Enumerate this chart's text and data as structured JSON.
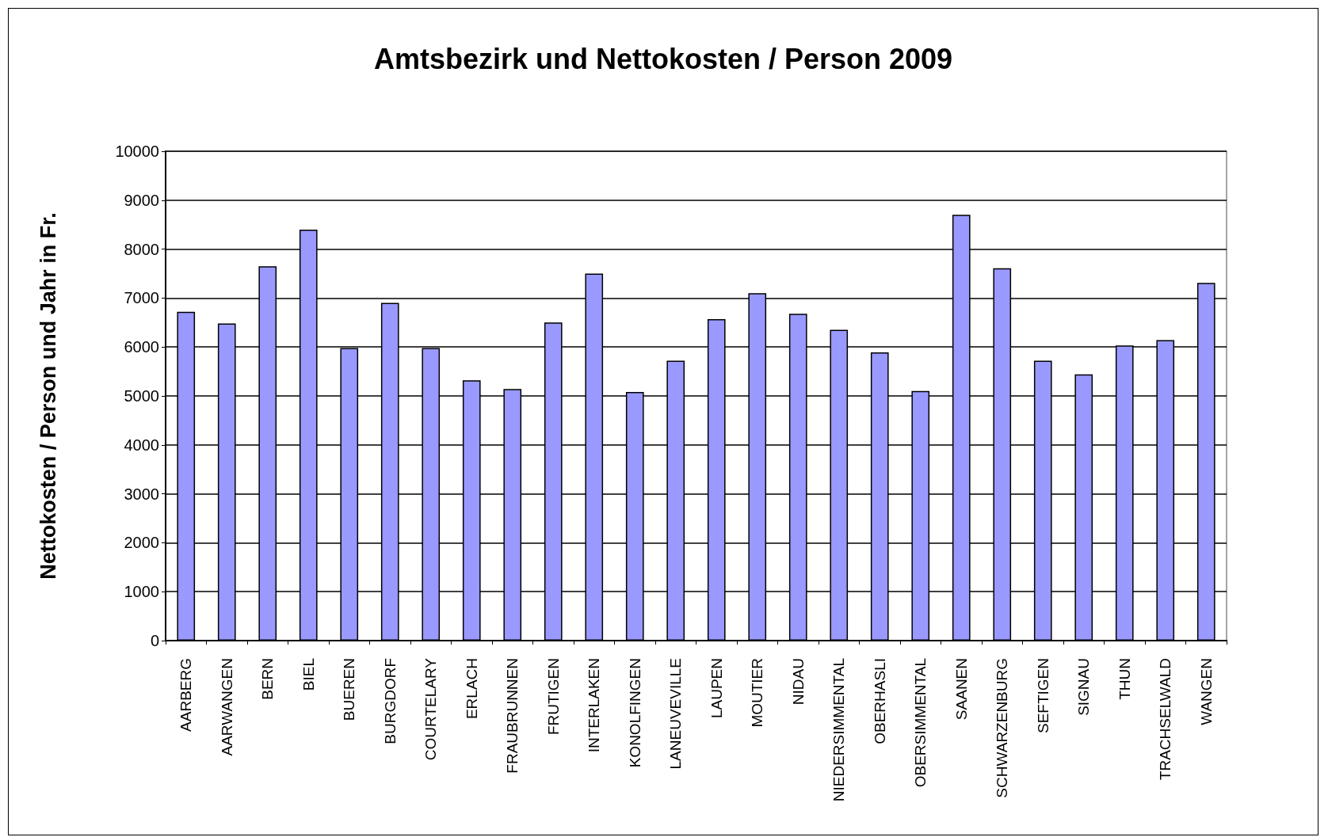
{
  "chart_data": {
    "type": "bar",
    "title": "Amtsbezirk und Nettokosten / Person 2009",
    "ylabel": "Nettokosten / Person und Jahr in Fr.",
    "categories": [
      "AARBERG",
      "AARWANGEN",
      "BERN",
      "BIEL",
      "BUEREN",
      "BURGDORF",
      "COURTELARY",
      "ERLACH",
      "FRAUBRUNNEN",
      "FRUTIGEN",
      "INTERLAKEN",
      "KONOLFINGEN",
      "LANEUVEVILLE",
      "LAUPEN",
      "MOUTIER",
      "NIDAU",
      "NIEDERSIMMENTAL",
      "OBERHASLI",
      "OBERSIMMENTAL",
      "SAANEN",
      "SCHWARZENBURG",
      "SEFTIGEN",
      "SIGNAU",
      "THUN",
      "TRACHSELWALD",
      "WANGEN"
    ],
    "values": [
      6720,
      6480,
      7650,
      8400,
      5980,
      6900,
      5980,
      5320,
      5140,
      6500,
      7500,
      5080,
      5720,
      6570,
      7100,
      6680,
      6350,
      5890,
      5100,
      8700,
      7610,
      5720,
      5440,
      6030,
      6140,
      7310
    ],
    "color": "#9999ff",
    "ylim": [
      0,
      10000
    ],
    "yticks": [
      0,
      1000,
      2000,
      3000,
      4000,
      5000,
      6000,
      7000,
      8000,
      9000,
      10000
    ],
    "grid": "y"
  }
}
